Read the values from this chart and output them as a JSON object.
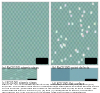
{
  "fig_width": 1.0,
  "fig_height": 0.93,
  "dpi": 100,
  "background_color": "#ffffff",
  "panel_captions": [
    "(a) NaCl(100) atomic steps",
    "(b) NaCl(100) point defects",
    "(c) KCl(100) atomic steps",
    "(d) KCl(100) flat surface"
  ],
  "figure_caption": "Figure 13 - NC-AFM images taken at room temperature of NaCl(100) and KCl(100) surfaces. The images show atomic resolution with step edges and point defects visible on the surfaces. Scale bars are shown in the bottom right corner of each image. The checkerboard pattern visible in (a), (b) and (c) corresponds to atomic corrugation resolved by NC-AFM. KCl(100) in (d) shows large flat terraces separated by monoatomic steps.",
  "checkerboard_c1": [
    0.48,
    0.65,
    0.62
  ],
  "checkerboard_c2": [
    0.58,
    0.73,
    0.7
  ],
  "dots_base": [
    0.52,
    0.68,
    0.65
  ],
  "flat_c1": [
    0.4,
    0.58,
    0.64
  ],
  "flat_c2": [
    0.5,
    0.68,
    0.72
  ],
  "scalebar_color": "#000000",
  "caption_fontsize": 2.0,
  "body_fontsize": 1.6,
  "spine_color": "#aaaaaa",
  "spine_lw": 0.3
}
